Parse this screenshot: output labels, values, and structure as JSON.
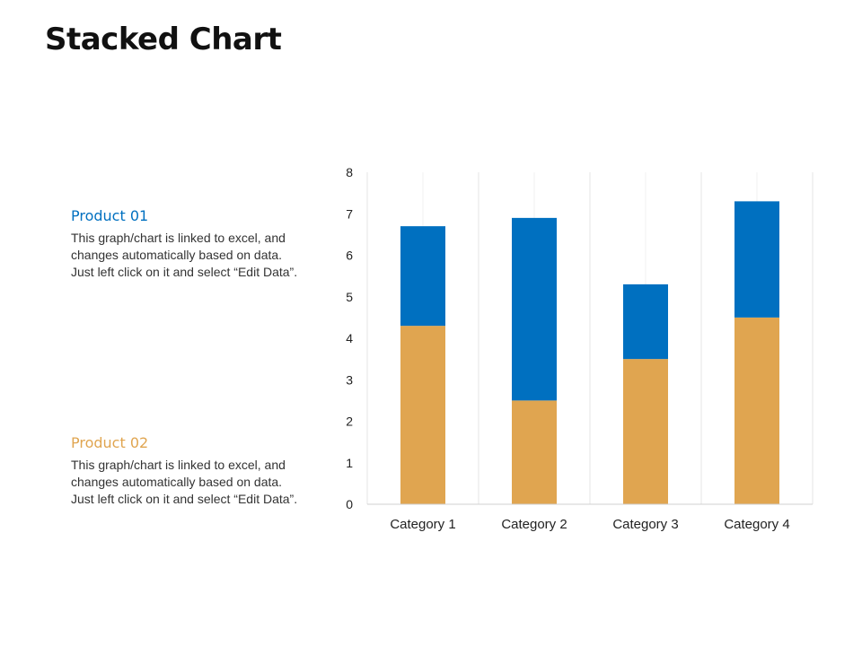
{
  "page": {
    "title": "Stacked Chart"
  },
  "legend_notes": [
    {
      "title": "Product 01",
      "color": "#0070C0",
      "description": "This graph/chart is linked to excel, and\nchanges automatically based on data.\nJust left click on it and select “Edit Data”."
    },
    {
      "title": "Product 02",
      "color": "#E0A550",
      "description": "This graph/chart is linked to excel, and\nchanges automatically based on data.\nJust left click on it and select “Edit Data”."
    }
  ],
  "chart_data": {
    "type": "bar",
    "stacked": true,
    "title": "Stacked Chart",
    "xlabel": "",
    "ylabel": "",
    "categories": [
      "Category 1",
      "Category 2",
      "Category 3",
      "Category 4"
    ],
    "series": [
      {
        "name": "Product 02",
        "color": "#E0A550",
        "values": [
          4.3,
          2.5,
          3.5,
          4.5
        ]
      },
      {
        "name": "Product 01",
        "color": "#0070C0",
        "values": [
          2.4,
          4.4,
          1.8,
          2.8
        ]
      }
    ],
    "ylim": [
      0,
      8
    ],
    "yticks": [
      0,
      1,
      2,
      3,
      4,
      5,
      6,
      7,
      8
    ],
    "grid": true
  }
}
